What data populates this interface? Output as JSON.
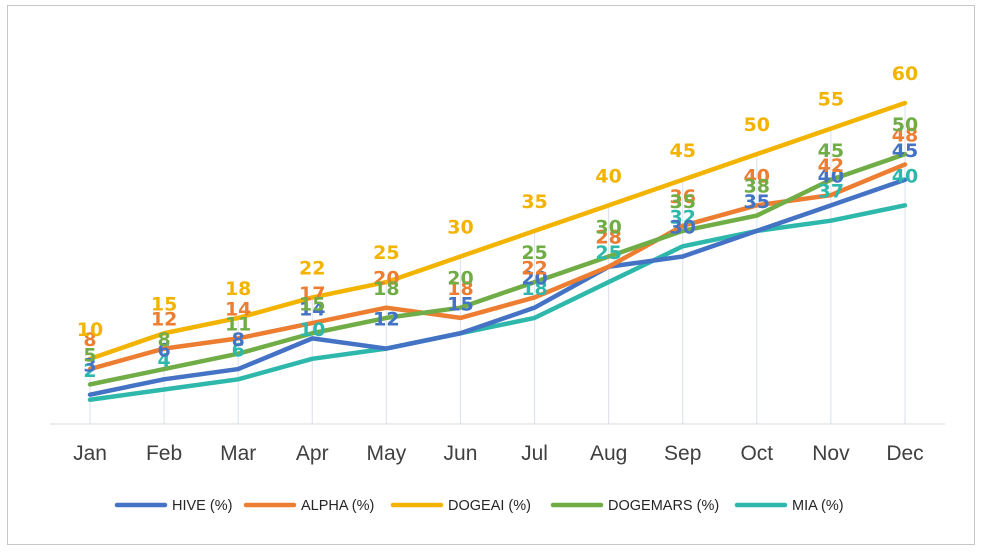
{
  "chart_data": {
    "type": "line",
    "categories": [
      "Jan",
      "Feb",
      "Mar",
      "Apr",
      "May",
      "Jun",
      "Jul",
      "Aug",
      "Sep",
      "Oct",
      "Nov",
      "Dec"
    ],
    "ylim": [
      0,
      60
    ],
    "grid": false,
    "vertical_drop_lines": true,
    "legend_position": "bottom",
    "series": [
      {
        "name": "HIVE (%)",
        "color": "#4472C4",
        "values": [
          3,
          6,
          8,
          14,
          12,
          15,
          20,
          28,
          30,
          35,
          40,
          45
        ]
      },
      {
        "name": "ALPHA (%)",
        "color": "#ED7D31",
        "values": [
          8,
          12,
          14,
          17,
          20,
          18,
          22,
          28,
          36,
          40,
          42,
          48
        ]
      },
      {
        "name": "DOGEAI (%)",
        "color": "#F2B400",
        "values": [
          10,
          15,
          18,
          22,
          25,
          30,
          35,
          40,
          45,
          50,
          55,
          60
        ]
      },
      {
        "name": "DOGEMARS (%)",
        "color": "#70AD47",
        "values": [
          5,
          8,
          11,
          15,
          18,
          20,
          25,
          30,
          35,
          38,
          45,
          50
        ]
      },
      {
        "name": "MIA (%)",
        "color": "#2EB8AC",
        "values": [
          2,
          4,
          6,
          10,
          12,
          15,
          18,
          25,
          32,
          35,
          37,
          40
        ]
      }
    ]
  }
}
